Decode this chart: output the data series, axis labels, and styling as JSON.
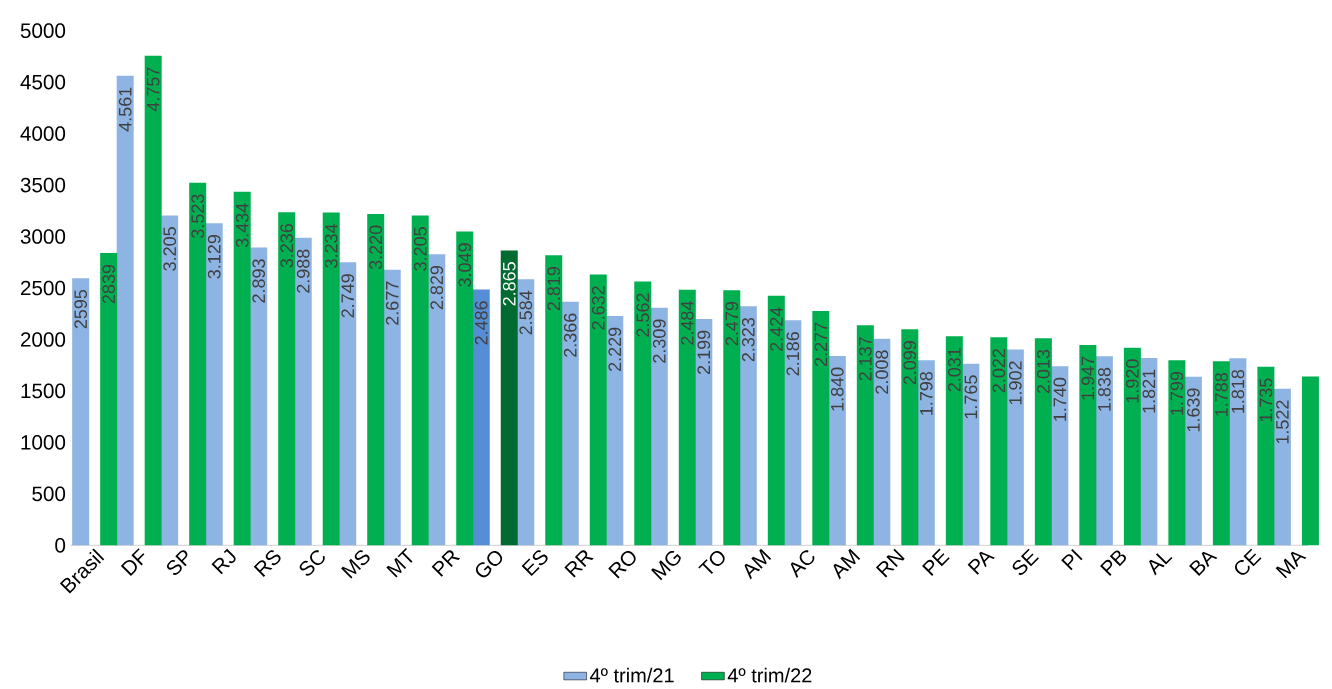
{
  "chart_data": {
    "type": "bar",
    "categories": [
      "Brasil",
      "DF",
      "SP",
      "RJ",
      "RS",
      "SC",
      "MS",
      "MT",
      "PR",
      "GO",
      "ES",
      "RR",
      "RO",
      "MG",
      "TO",
      "AM",
      "AC",
      "AM",
      "RN",
      "PE",
      "PA",
      "SE",
      "PI",
      "PB",
      "AL",
      "BA",
      "CE",
      "MA"
    ],
    "series": [
      {
        "name": "4º trim/21",
        "colors": [
          "#8eb4e3",
          "#8eb4e3",
          "#8eb4e3",
          "#8eb4e3",
          "#8eb4e3",
          "#8eb4e3",
          "#8eb4e3",
          "#8eb4e3",
          "#8eb4e3",
          "#558ed5",
          "#8eb4e3",
          "#8eb4e3",
          "#8eb4e3",
          "#8eb4e3",
          "#8eb4e3",
          "#8eb4e3",
          "#8eb4e3",
          "#8eb4e3",
          "#8eb4e3",
          "#8eb4e3",
          "#8eb4e3",
          "#8eb4e3",
          "#8eb4e3",
          "#8eb4e3",
          "#8eb4e3",
          "#8eb4e3",
          "#8eb4e3",
          "#8eb4e3"
        ],
        "values": [
          2595,
          4561,
          3205,
          3129,
          2893,
          2988,
          2749,
          2677,
          2829,
          2486,
          2584,
          2366,
          2229,
          2309,
          2199,
          2323,
          2186,
          1840,
          2008,
          1798,
          1765,
          1902,
          1740,
          1838,
          1821,
          1639,
          1818,
          1522
        ],
        "value_labels": [
          "2595",
          "4.561",
          "3.205",
          "3.129",
          "2.893",
          "2.988",
          "2.749",
          "2.677",
          "2.829",
          "2.486",
          "2.584",
          "2.366",
          "2.229",
          "2.309",
          "2.199",
          "2.323",
          "2.186",
          "1.840",
          "2.008",
          "1.798",
          "1.765",
          "1.902",
          "1.740",
          "1.838",
          "1.821",
          "1.639",
          "1.818",
          "1.522"
        ]
      },
      {
        "name": "4º trim/22",
        "colors": [
          "#00b050",
          "#00b050",
          "#00b050",
          "#00b050",
          "#00b050",
          "#00b050",
          "#00b050",
          "#00b050",
          "#00b050",
          "#006b30",
          "#00b050",
          "#00b050",
          "#00b050",
          "#00b050",
          "#00b050",
          "#00b050",
          "#00b050",
          "#00b050",
          "#00b050",
          "#00b050",
          "#00b050",
          "#00b050",
          "#00b050",
          "#00b050",
          "#00b050",
          "#00b050",
          "#00b050",
          "#00b050"
        ],
        "values": [
          2839,
          4757,
          3523,
          3434,
          3236,
          3234,
          3220,
          3205,
          3049,
          2865,
          2819,
          2632,
          2562,
          2484,
          2479,
          2424,
          2277,
          2137,
          2099,
          2031,
          2022,
          2013,
          1947,
          1920,
          1799,
          1788,
          1735,
          1640
        ],
        "value_labels": [
          "2839",
          "4.757",
          "3.523",
          "3.434",
          "3.236",
          "3.234",
          "3.220",
          "3.205",
          "3.049",
          "2.865",
          "2.819",
          "2.632",
          "2.562",
          "2.484",
          "2.479",
          "2.424",
          "2.277",
          "2.137",
          "2.099",
          "2.031",
          "2.022",
          "2.013",
          "1.947",
          "1.920",
          "1.799",
          "1.788",
          "1.735",
          null
        ]
      }
    ],
    "ylim": [
      0,
      5000
    ],
    "yticks": [
      0,
      500,
      1000,
      1500,
      2000,
      2500,
      3000,
      3500,
      4000,
      4500,
      5000
    ],
    "grid": false,
    "legend": "bottom"
  }
}
